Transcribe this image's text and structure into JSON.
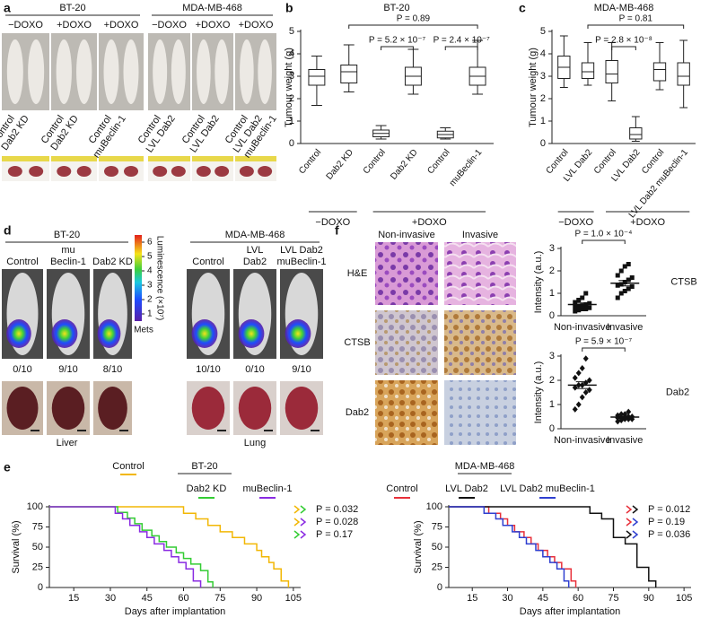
{
  "figure": {
    "panel_letters": [
      "a",
      "b",
      "c",
      "d",
      "e",
      "f"
    ],
    "a": {
      "groups": [
        {
          "title": "BT-20",
          "treatments": [
            "−DOXO",
            "+DOXO",
            "+DOXO"
          ]
        },
        {
          "title": "MDA-MB-468",
          "treatments": [
            "−DOXO",
            "+DOXO",
            "+DOXO"
          ]
        }
      ],
      "photo_labels": [
        [
          "Control",
          "Dab2 KD"
        ],
        [
          "Control",
          "Dab2 KD"
        ],
        [
          "Control",
          "muBeclin-1"
        ],
        [
          "Control",
          "LVL Dab2"
        ],
        [
          "Control",
          "LVL Dab2"
        ],
        [
          "Control",
          "LVL Dab2",
          "muBeclin-1"
        ]
      ]
    },
    "d": {
      "groups": [
        {
          "title": "BT-20",
          "columns": [
            [
              "Control"
            ],
            [
              "mu",
              "Beclin-1"
            ],
            [
              "Dab2 KD"
            ]
          ],
          "counts": [
            "0/10",
            "9/10",
            "8/10"
          ],
          "organ": "Liver"
        },
        {
          "title": "MDA-MB-468",
          "columns": [
            [
              "Control"
            ],
            [
              "LVL",
              "Dab2"
            ],
            [
              "LVL Dab2",
              "muBeclin-1"
            ]
          ],
          "counts": [
            "10/10",
            "0/10",
            "9/10"
          ],
          "organ": "Lung"
        }
      ],
      "colorbar": {
        "label": "Luminescence (×10⁷)",
        "ticks": [
          1,
          2,
          3,
          4,
          5,
          6
        ],
        "lim": [
          0.5,
          6.5
        ],
        "footer": "Mets"
      }
    },
    "f": {
      "columns": [
        "Non-invasive",
        "Invasive"
      ],
      "rows": [
        "H&E",
        "CTSB",
        "Dab2"
      ]
    }
  },
  "chart_data": [
    {
      "type": "box",
      "title": "BT-20",
      "ylabel": "Tumour weight (g)",
      "categories": [
        "Control",
        "Dab2 KD",
        "Control",
        "Dab2 KD",
        "Control",
        "muBeclin-1"
      ],
      "values": [
        [
          1.7,
          2.6,
          3.0,
          3.3,
          3.9
        ],
        [
          2.3,
          2.7,
          3.2,
          3.5,
          4.4
        ],
        [
          0.2,
          0.3,
          0.45,
          0.6,
          0.8
        ],
        [
          2.2,
          2.6,
          3.0,
          3.4,
          4.2
        ],
        [
          0.2,
          0.25,
          0.4,
          0.55,
          0.7
        ],
        [
          2.2,
          2.6,
          3.0,
          3.4,
          4.6
        ]
      ],
      "group_labels": [
        "−DOXO",
        "+DOXO"
      ],
      "annotations": [
        "P = 0.89",
        "P = 5.2 × 10⁻⁷",
        "P = 2.4 × 10⁻⁷"
      ],
      "ylim": [
        0,
        5
      ],
      "yticks": [
        0,
        1,
        2,
        3,
        4,
        5
      ]
    },
    {
      "type": "box",
      "title": "MDA-MB-468",
      "ylabel": "Tumour weight (g)",
      "categories": [
        "Control",
        "LVL Dab2",
        "Control",
        "LVL Dab2",
        "Control",
        "LVL Dab2 muBeclin-1"
      ],
      "values": [
        [
          2.5,
          2.9,
          3.4,
          3.9,
          4.8
        ],
        [
          2.6,
          2.9,
          3.2,
          3.6,
          4.5
        ],
        [
          1.9,
          2.7,
          3.1,
          3.7,
          4.5
        ],
        [
          0.1,
          0.2,
          0.4,
          0.7,
          1.2
        ],
        [
          2.4,
          2.8,
          3.3,
          3.6,
          4.5
        ],
        [
          1.6,
          2.6,
          3.0,
          3.6,
          4.6
        ]
      ],
      "group_labels": [
        "−DOXO",
        "+DOXO"
      ],
      "annotations": [
        "P = 0.81",
        "P = 2.8 × 10⁻⁸"
      ],
      "ylim": [
        0,
        5
      ],
      "yticks": [
        0,
        1,
        2,
        3,
        4,
        5
      ]
    },
    {
      "type": "dot",
      "label": "CTSB",
      "ylabel": "Intensity (a.u.)",
      "marker": "square",
      "categories": [
        "Non-invasive",
        "Invasive"
      ],
      "values": [
        [
          0.2,
          0.25,
          0.3,
          0.3,
          0.35,
          0.4,
          0.4,
          0.45,
          0.5,
          0.55,
          0.6,
          0.7,
          0.8,
          1.0
        ],
        [
          0.8,
          1.0,
          1.1,
          1.2,
          1.3,
          1.35,
          1.4,
          1.5,
          1.6,
          1.7,
          1.8,
          2.0,
          2.2,
          2.3
        ]
      ],
      "means": [
        0.5,
        1.45
      ],
      "sem": [
        0.07,
        0.12
      ],
      "annotation": "P = 1.0 × 10⁻⁴",
      "ylim": [
        0,
        3
      ],
      "yticks": [
        0,
        1,
        2,
        3
      ]
    },
    {
      "type": "dot",
      "label": "Dab2",
      "ylabel": "Intensity (a.u.)",
      "marker": "diamond",
      "categories": [
        "Non-invasive",
        "Invasive"
      ],
      "values": [
        [
          0.8,
          1.0,
          1.3,
          1.5,
          1.6,
          1.7,
          1.8,
          1.8,
          1.9,
          2.0,
          2.1,
          2.3,
          2.5,
          2.9
        ],
        [
          0.3,
          0.35,
          0.4,
          0.4,
          0.4,
          0.45,
          0.45,
          0.5,
          0.5,
          0.5,
          0.55,
          0.6,
          0.6,
          0.7
        ]
      ],
      "means": [
        1.8,
        0.48
      ],
      "sem": [
        0.14,
        0.03
      ],
      "annotation": "P = 5.9 × 10⁻⁷",
      "ylim": [
        0,
        3
      ],
      "yticks": [
        0,
        1,
        2,
        3
      ]
    },
    {
      "type": "step",
      "title": "BT-20",
      "xlabel": "Days after implantation",
      "ylabel": "Survival (%)",
      "series": [
        {
          "name": "Control",
          "color": "#f2b705",
          "x": [
            5,
            60,
            60,
            65,
            65,
            70,
            70,
            75,
            75,
            80,
            80,
            85,
            85,
            90,
            90,
            92,
            92,
            95,
            95,
            97,
            97,
            100,
            100,
            103,
            103
          ],
          "values": [
            100,
            100,
            92,
            92,
            85,
            85,
            77,
            77,
            69,
            69,
            62,
            62,
            54,
            54,
            46,
            46,
            38,
            38,
            31,
            31,
            23,
            23,
            8,
            8,
            0
          ]
        },
        {
          "name": "Dab2 KD",
          "color": "#33cc33",
          "x": [
            5,
            33,
            33,
            37,
            37,
            40,
            40,
            43,
            43,
            47,
            47,
            50,
            50,
            53,
            53,
            57,
            57,
            60,
            60,
            63,
            63,
            67,
            67,
            70,
            70,
            72,
            72
          ],
          "values": [
            100,
            100,
            93,
            93,
            86,
            86,
            79,
            79,
            71,
            71,
            64,
            64,
            57,
            57,
            50,
            50,
            43,
            43,
            36,
            36,
            29,
            29,
            21,
            21,
            7,
            7,
            0
          ]
        },
        {
          "name": "muBeclin-1",
          "color": "#8a2be2",
          "x": [
            5,
            32,
            32,
            35,
            35,
            38,
            38,
            42,
            42,
            45,
            45,
            48,
            48,
            52,
            52,
            55,
            55,
            58,
            58,
            61,
            61,
            64,
            64,
            67,
            67
          ],
          "values": [
            100,
            100,
            92,
            92,
            85,
            85,
            77,
            77,
            69,
            69,
            62,
            62,
            54,
            54,
            46,
            46,
            38,
            38,
            31,
            31,
            23,
            23,
            8,
            8,
            0
          ]
        }
      ],
      "annotations": [
        "P = 0.032",
        "P = 0.028",
        "P = 0.17"
      ],
      "xlim": [
        5,
        108
      ],
      "xticks": [
        15,
        30,
        45,
        60,
        75,
        90,
        105
      ],
      "ylim": [
        0,
        100
      ],
      "yticks": [
        0,
        25,
        50,
        75,
        100
      ]
    },
    {
      "type": "step",
      "title": "MDA-MB-468",
      "xlabel": "Days after implantation",
      "ylabel": "Survival (%)",
      "series": [
        {
          "name": "Control",
          "color": "#e8303a",
          "x": [
            5,
            22,
            22,
            27,
            27,
            30,
            30,
            33,
            33,
            37,
            37,
            40,
            40,
            43,
            43,
            47,
            47,
            50,
            50,
            53,
            53,
            57,
            57,
            59,
            59
          ],
          "values": [
            100,
            100,
            92,
            92,
            85,
            85,
            77,
            77,
            69,
            69,
            62,
            62,
            54,
            54,
            46,
            46,
            38,
            38,
            31,
            31,
            23,
            23,
            8,
            8,
            0
          ]
        },
        {
          "name": "LVL Dab2",
          "color": "#111111",
          "x": [
            5,
            65,
            65,
            70,
            70,
            75,
            75,
            80,
            80,
            85,
            85,
            90,
            90,
            93,
            93
          ],
          "values": [
            100,
            100,
            92,
            92,
            85,
            85,
            62,
            62,
            54,
            54,
            25,
            25,
            8,
            8,
            0
          ]
        },
        {
          "name": "LVL Dab2 muBeclin-1",
          "color": "#2f3fd0",
          "x": [
            5,
            20,
            20,
            25,
            25,
            28,
            28,
            32,
            32,
            35,
            35,
            38,
            38,
            42,
            42,
            45,
            45,
            48,
            48,
            51,
            51,
            54,
            54,
            56,
            56
          ],
          "values": [
            100,
            100,
            92,
            92,
            85,
            85,
            77,
            77,
            69,
            69,
            62,
            62,
            54,
            54,
            46,
            46,
            38,
            38,
            31,
            31,
            23,
            23,
            8,
            8,
            0
          ]
        }
      ],
      "annotations": [
        "P = 0.012",
        "P = 0.19",
        "P = 0.036"
      ],
      "xlim": [
        5,
        108
      ],
      "xticks": [
        15,
        30,
        45,
        60,
        75,
        90,
        105
      ],
      "ylim": [
        0,
        100
      ],
      "yticks": [
        0,
        25,
        50,
        75,
        100
      ]
    }
  ]
}
